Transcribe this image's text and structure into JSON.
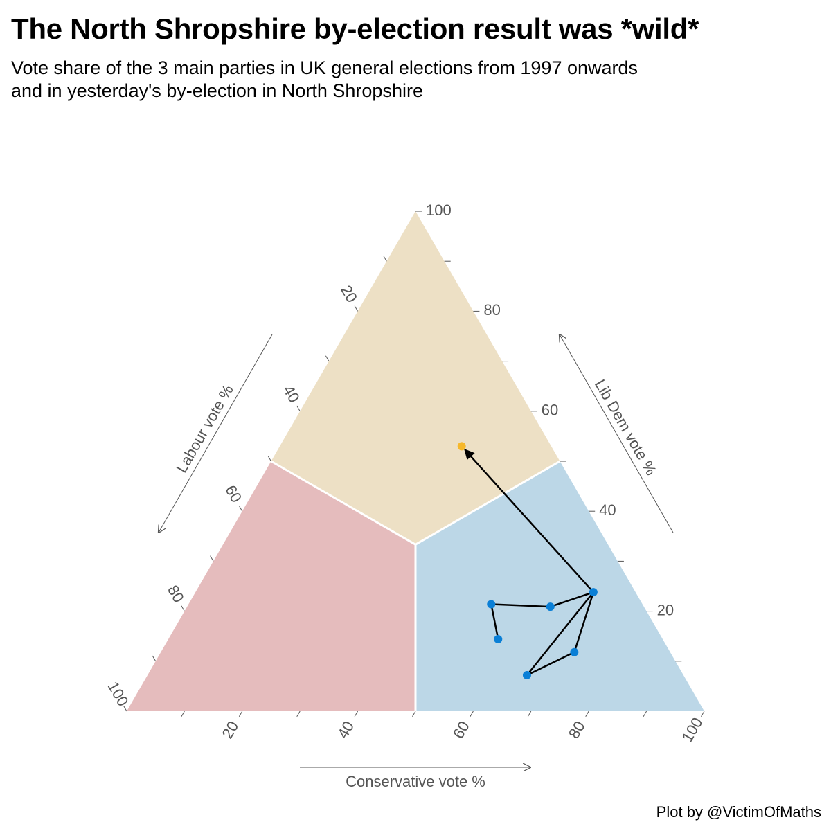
{
  "title": "The North Shropshire by-election result was *wild*",
  "subtitle_lines": [
    "Vote share of the 3 main parties in UK general elections from 1997 onwards",
    "and in yesterday's by-election in North Shropshire"
  ],
  "credit": "Plot by @VictimOfMaths",
  "colors": {
    "libdem_region": "#ede0c5",
    "labour_region": "#e5bcbd",
    "conservative_region": "#bcd7e7",
    "general_election_point": "#0a7fd6",
    "by_election_point": "#f6b82b",
    "path_line": "#000000",
    "axis_text": "#555555"
  },
  "chart_data": {
    "type": "ternary",
    "axes": {
      "conservative": {
        "label": "Conservative vote %",
        "ticks": [
          "20",
          "40",
          "60",
          "80",
          "100"
        ]
      },
      "libdem": {
        "label": "Lib Dem vote %",
        "ticks": [
          "20",
          "40",
          "60",
          "80",
          "100"
        ]
      },
      "labour": {
        "label": "Labour vote %",
        "ticks": [
          "20",
          "40",
          "60",
          "80",
          "100"
        ]
      }
    },
    "range": [
      0,
      100
    ],
    "regions": [
      {
        "party": "Lib Dem",
        "color": "#ede0c5"
      },
      {
        "party": "Labour",
        "color": "#e5bcbd"
      },
      {
        "party": "Conservative",
        "color": "#bcd7e7"
      }
    ],
    "general_elections": [
      {
        "conservative": 57.1,
        "labour": 28.5,
        "libdem": 14.4
      },
      {
        "conservative": 52.4,
        "labour": 26.2,
        "libdem": 21.4
      },
      {
        "conservative": 62.9,
        "labour": 16.2,
        "libdem": 20.9
      },
      {
        "conservative": 68.9,
        "labour": 7.3,
        "libdem": 23.8
      },
      {
        "conservative": 71.6,
        "labour": 16.6,
        "libdem": 11.8
      },
      {
        "conservative": 65.7,
        "labour": 27.1,
        "libdem": 7.2
      }
    ],
    "by_election": {
      "conservative": 31.5,
      "labour": 15.5,
      "libdem": 53.0
    }
  }
}
